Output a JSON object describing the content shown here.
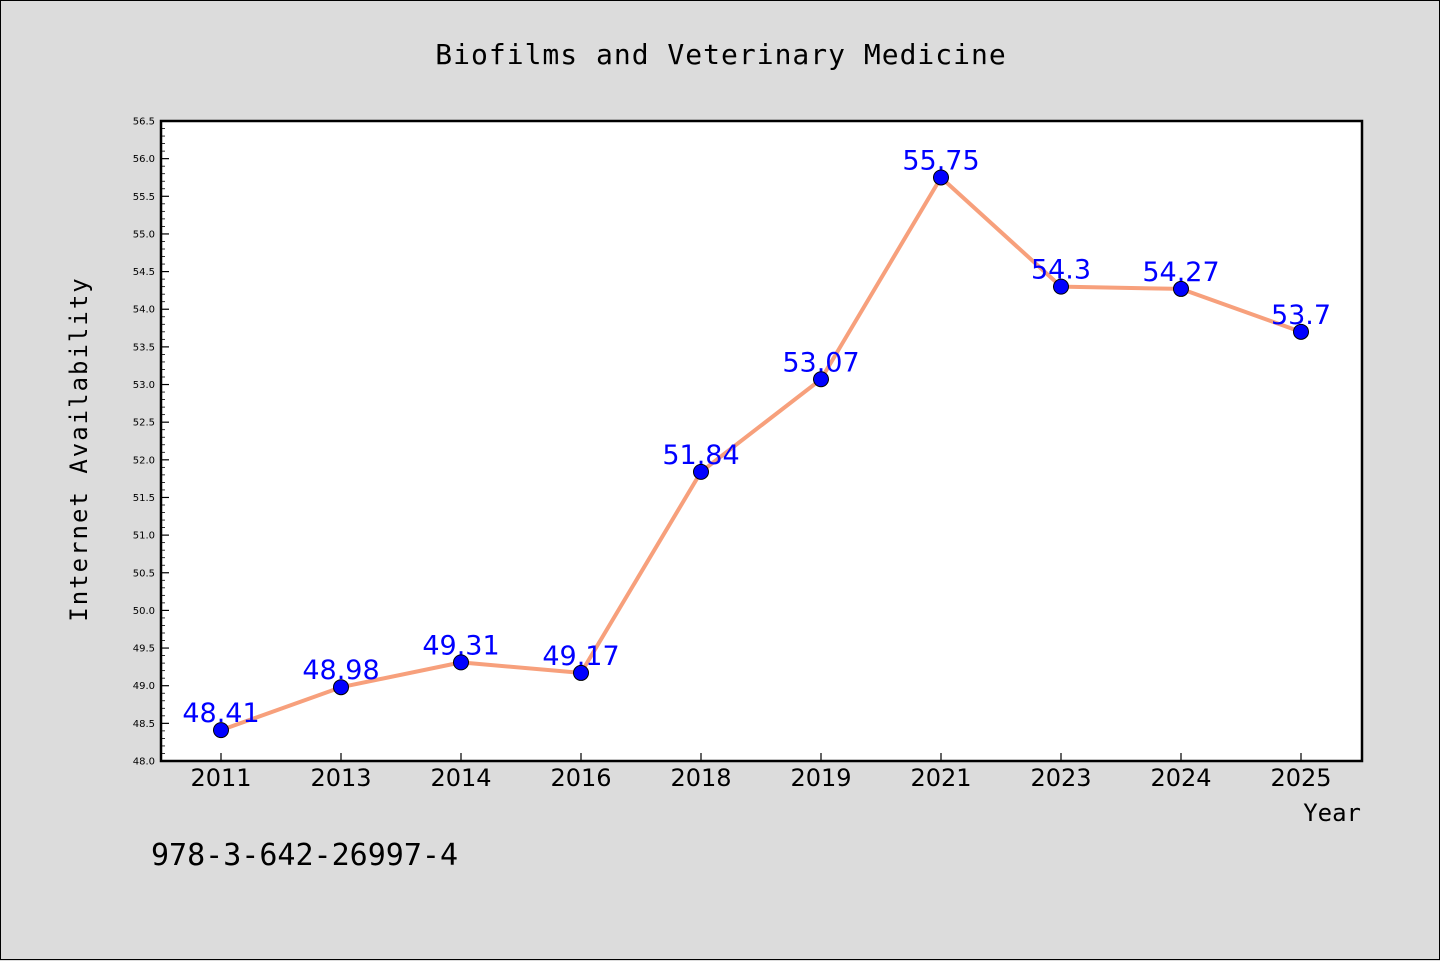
{
  "chart_data": {
    "type": "line",
    "title": "Biofilms and Veterinary Medicine",
    "xlabel": "Year",
    "ylabel": "Internet Availability",
    "categories": [
      "2011",
      "2013",
      "2014",
      "2016",
      "2018",
      "2019",
      "2021",
      "2023",
      "2024",
      "2025"
    ],
    "series": [
      {
        "values": [
          48.41,
          48.98,
          49.31,
          49.17,
          51.84,
          53.07,
          55.75,
          54.3,
          54.27,
          53.7
        ],
        "labels": [
          "48.41",
          "48.98",
          "49.31",
          "49.17",
          "51.84",
          "53.07",
          "55.75",
          "54.3",
          "54.27",
          "53.7"
        ],
        "line_color": "#f7a07c",
        "marker_color": "#0000ff"
      }
    ],
    "ylim": [
      48.0,
      56.5
    ],
    "y_ticks": [
      "48.0",
      "48.5",
      "49.0",
      "49.5",
      "50.0",
      "50.5",
      "51.0",
      "51.5",
      "52.0",
      "52.5",
      "53.0",
      "53.5",
      "54.0",
      "54.5",
      "55.0",
      "55.5",
      "56.0",
      "56.5"
    ],
    "grid": false,
    "label_color": "#0000ff"
  },
  "annotation": "978-3-642-26997-4"
}
